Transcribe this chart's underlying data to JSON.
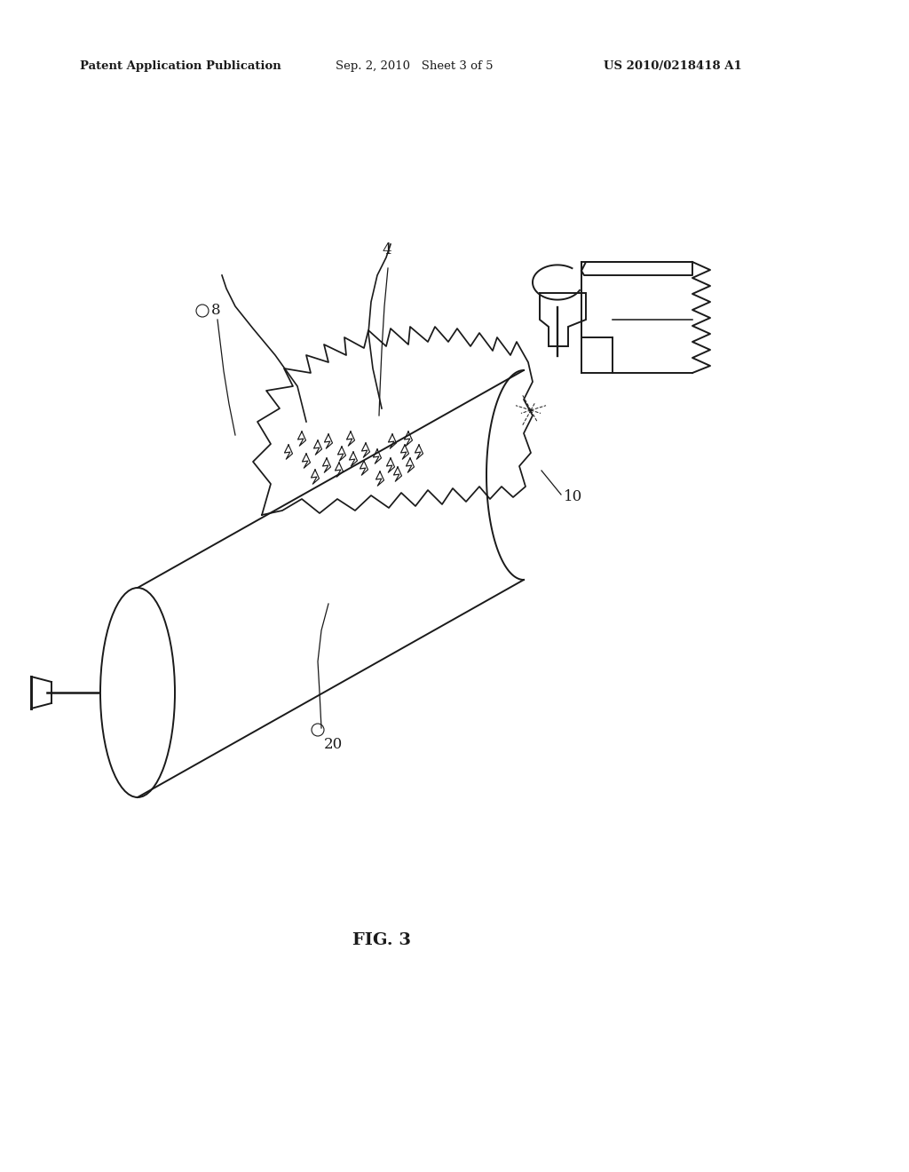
{
  "bg_color": "#ffffff",
  "line_color": "#1a1a1a",
  "header_left": "Patent Application Publication",
  "header_mid": "Sep. 2, 2010   Sheet 3 of 5",
  "header_right": "US 2010/0218418 A1",
  "fig_label": "FIG. 3",
  "figsize": [
    10.24,
    13.2
  ],
  "dpi": 100
}
